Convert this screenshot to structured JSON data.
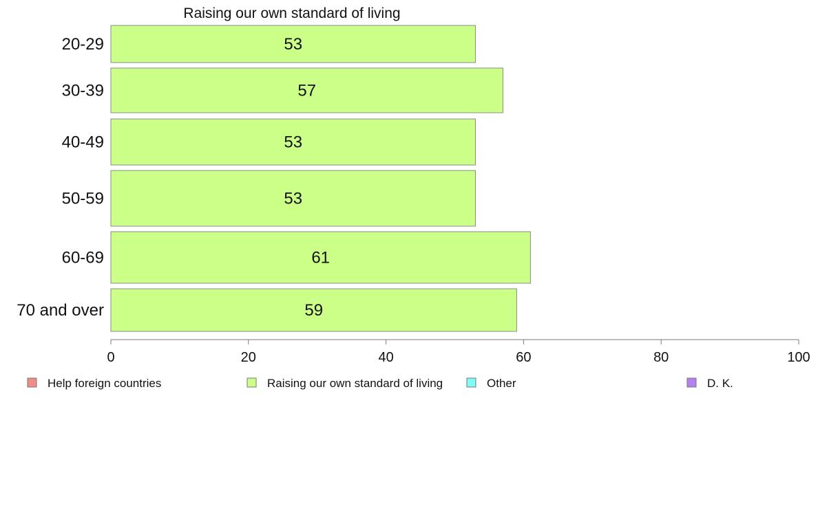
{
  "chart_data": {
    "type": "bar",
    "orientation": "horizontal",
    "title": "Raising our own standard of living",
    "categories": [
      "20-29",
      "30-39",
      "40-49",
      "50-59",
      "60-69",
      "70 and over"
    ],
    "series": [
      {
        "name": "Raising our own standard of living",
        "color": "#ccff88",
        "values": [
          53,
          57,
          53,
          53,
          61,
          59
        ]
      }
    ],
    "data_labels": [
      "53",
      "57",
      "53",
      "53",
      "61",
      "59"
    ],
    "xlim": [
      0,
      100
    ],
    "xticks": [
      0,
      20,
      40,
      60,
      80,
      100
    ],
    "grid": false,
    "legend": {
      "placement": "bottom",
      "entries": [
        {
          "label": "Help foreign countries",
          "color": "#f28b86"
        },
        {
          "label": "Raising our own standard of living",
          "color": "#ccff88"
        },
        {
          "label": "Other",
          "color": "#7ffcf6"
        },
        {
          "label": "D. K.",
          "color": "#b580f0"
        }
      ]
    }
  }
}
